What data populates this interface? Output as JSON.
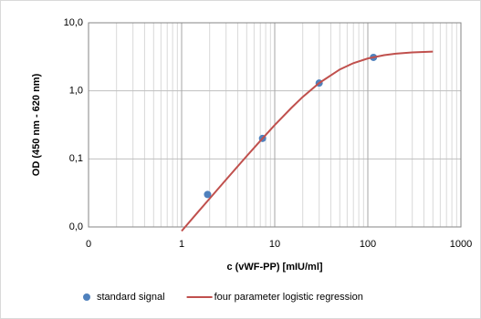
{
  "chart_data": {
    "type": "scatter",
    "xlabel": "c (vWF-PP) [mIU/ml]",
    "ylabel": "OD (450 nm - 620 nm)",
    "xscale": "log",
    "yscale": "log",
    "xlim": [
      0.1,
      1000
    ],
    "ylim": [
      0.01,
      10
    ],
    "xticks": [
      {
        "value": 0.1,
        "label": "0"
      },
      1,
      10,
      100,
      1000
    ],
    "yticks": [
      {
        "value": 0.01,
        "label": "0,0"
      },
      {
        "value": 0.1,
        "label": "0,1"
      },
      {
        "value": 1,
        "label": "1,0"
      },
      {
        "value": 10,
        "label": "10,0"
      }
    ],
    "grid": true,
    "minor_grid_x": true,
    "legend": "bottom",
    "series": [
      {
        "name": "standard signal",
        "mode": "markers",
        "color": "#4f81bd",
        "x": [
          1.9,
          7.4,
          30,
          115
        ],
        "values": [
          0.03,
          0.2,
          1.3,
          3.1
        ]
      },
      {
        "name": "four parameter logistic regression",
        "mode": "line",
        "color": "#c0504d",
        "x": [
          1,
          1.5,
          2,
          3,
          5,
          7,
          10,
          15,
          20,
          30,
          50,
          70,
          100,
          150,
          200,
          300,
          500
        ],
        "values": [
          0.0087,
          0.0166,
          0.0261,
          0.0495,
          0.11,
          0.184,
          0.314,
          0.557,
          0.814,
          1.302,
          2.062,
          2.555,
          2.99,
          3.35,
          3.52,
          3.67,
          3.77
        ]
      }
    ]
  }
}
